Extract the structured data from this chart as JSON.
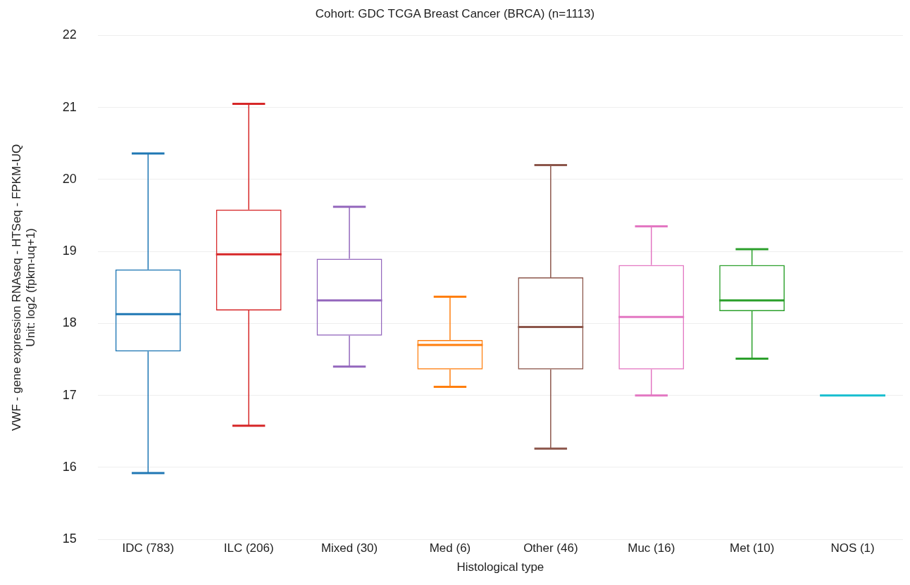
{
  "chart_data": {
    "type": "box",
    "title": "Cohort: GDC TCGA Breast Cancer (BRCA) (n=1113)",
    "xlabel": "Histological type",
    "ylabel": "VWF - gene expression RNAseq - HTSeq - FPKM-UQ\nUnit: log2 (fpkm-uq+1)",
    "categories": [
      "IDC (783)",
      "ILC (206)",
      "Mixed (30)",
      "Med (6)",
      "Other (46)",
      "Muc (16)",
      "Met (10)",
      "NOS (1)"
    ],
    "colors": [
      "#1f77b4",
      "#d62728",
      "#9467bd",
      "#ff7f0e",
      "#8c564b",
      "#e377c2",
      "#2ca02c",
      "#17becf"
    ],
    "boxes": [
      {
        "low": 15.92,
        "q1": 17.61,
        "median": 18.13,
        "q3": 18.75,
        "high": 20.36
      },
      {
        "low": 16.58,
        "q1": 18.18,
        "median": 18.96,
        "q3": 19.58,
        "high": 21.05
      },
      {
        "low": 17.4,
        "q1": 17.83,
        "median": 18.32,
        "q3": 18.9,
        "high": 19.62
      },
      {
        "low": 17.12,
        "q1": 17.36,
        "median": 17.7,
        "q3": 17.77,
        "high": 18.37
      },
      {
        "low": 16.26,
        "q1": 17.36,
        "median": 17.95,
        "q3": 18.64,
        "high": 20.2
      },
      {
        "low": 17.0,
        "q1": 17.36,
        "median": 18.09,
        "q3": 18.81,
        "high": 19.35
      },
      {
        "low": 17.51,
        "q1": 18.17,
        "median": 18.32,
        "q3": 18.81,
        "high": 19.03
      },
      {
        "low": 17.0,
        "q1": 17.0,
        "median": 17.0,
        "q3": 17.0,
        "high": 17.0
      }
    ],
    "ylim": [
      15,
      22
    ],
    "yticks": [
      15,
      16,
      17,
      18,
      19,
      20,
      21,
      22
    ],
    "grid": "y"
  }
}
